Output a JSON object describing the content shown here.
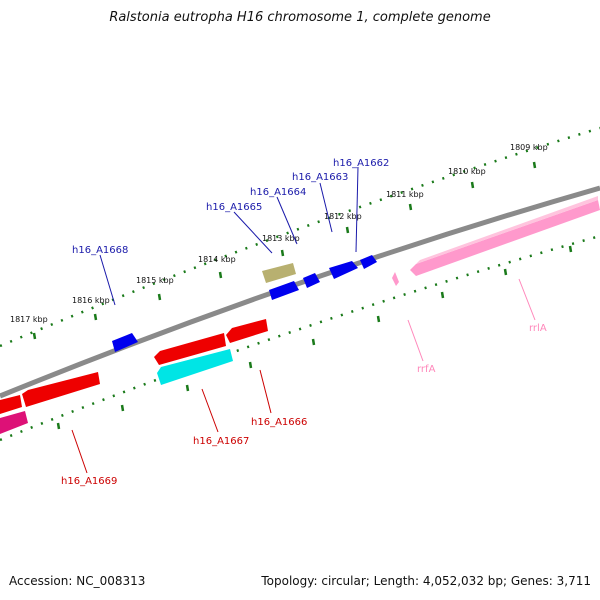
{
  "title": "Ralstonia eutropha H16 chromosome 1, complete genome",
  "accession": "Accession: NC_008313",
  "summary": "Topology: circular; Length: 4,052,032 bp; Genes: 3,711",
  "colors": {
    "backbone": "#8a8a8a",
    "tick": "#1a7a1a",
    "cds_forward": "#0000ee",
    "cds_reverse": "#ee0000",
    "rna": "#ff99cc",
    "pseudo": "#b8b070",
    "other": "#00e5e5",
    "magenta": "#dd1177",
    "label_forward": "#1a1aaa",
    "label_reverse": "#cc0000",
    "label_rna": "#ff88bb"
  },
  "kbp_labels": [
    "1809 kbp",
    "1810 kbp",
    "1811 kbp",
    "1812 kbp",
    "1813 kbp",
    "1814 kbp",
    "1815 kbp",
    "1816 kbp",
    "1817 kbp"
  ],
  "gene_labels": {
    "forward": [
      "h16_A1662",
      "h16_A1663",
      "h16_A1664",
      "h16_A1665",
      "h16_A1668"
    ],
    "reverse": [
      "h16_A1666",
      "h16_A1667",
      "h16_A1669"
    ],
    "rna": [
      "rrfA",
      "rrlA"
    ]
  }
}
